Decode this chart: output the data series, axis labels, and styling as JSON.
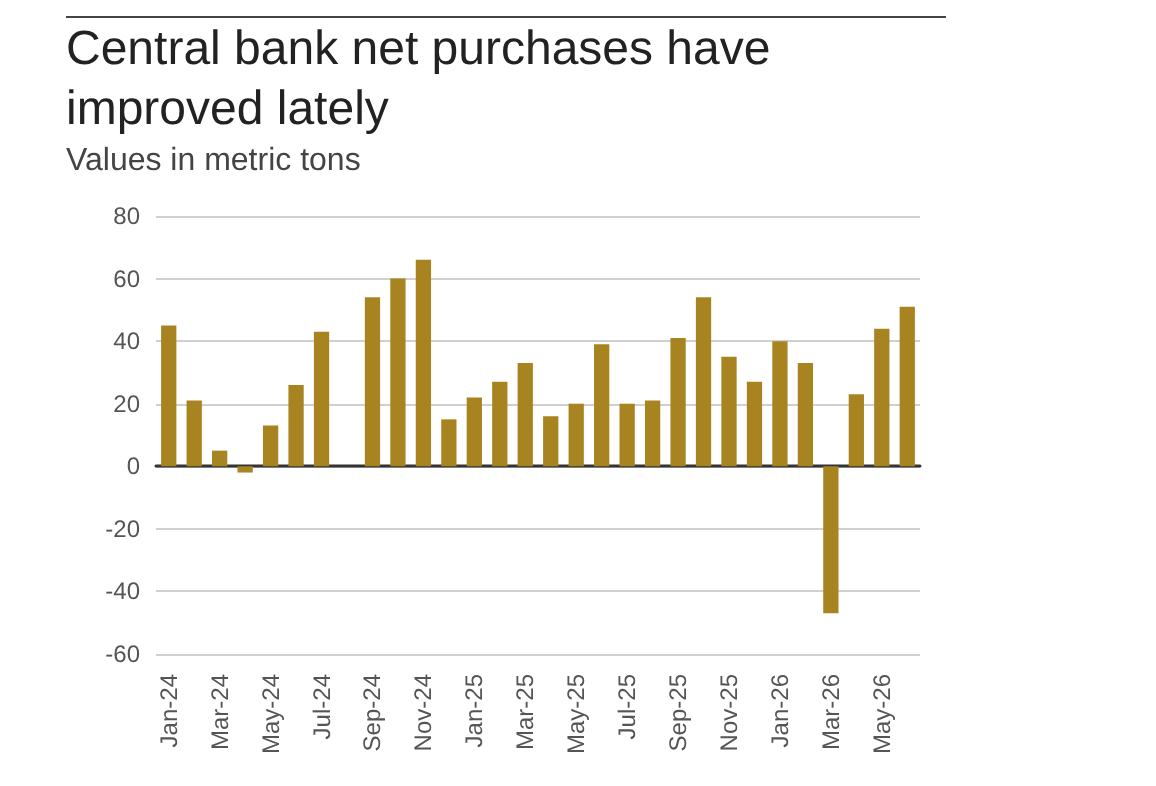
{
  "chart_data": {
    "type": "bar",
    "title": "Central bank net purchases have improved lately",
    "subtitle": "Values in metric tons",
    "categories": [
      "Jan-24",
      null,
      "Mar-24",
      null,
      "May-24",
      null,
      "Jul-24",
      null,
      "Sep-24",
      null,
      "Nov-24",
      null,
      "Jan-25",
      null,
      "Mar-25",
      null,
      "May-25",
      null,
      "Jul-25",
      null,
      "Sep-25",
      null,
      "Nov-25",
      null,
      "Jan-26",
      null,
      "Mar-26",
      null,
      "May-26",
      null
    ],
    "values": [
      45,
      21,
      5,
      -2,
      13,
      26,
      43,
      0,
      54,
      60,
      66,
      15,
      22,
      27,
      33,
      16,
      20,
      39,
      20,
      21,
      41,
      54,
      35,
      27,
      40,
      33,
      -47,
      23,
      44,
      51
    ],
    "color": "#a88421",
    "ylim": [
      -60,
      80
    ],
    "yticks": [
      -60,
      -40,
      -20,
      0,
      20,
      40,
      60,
      80
    ],
    "grid": "y"
  }
}
